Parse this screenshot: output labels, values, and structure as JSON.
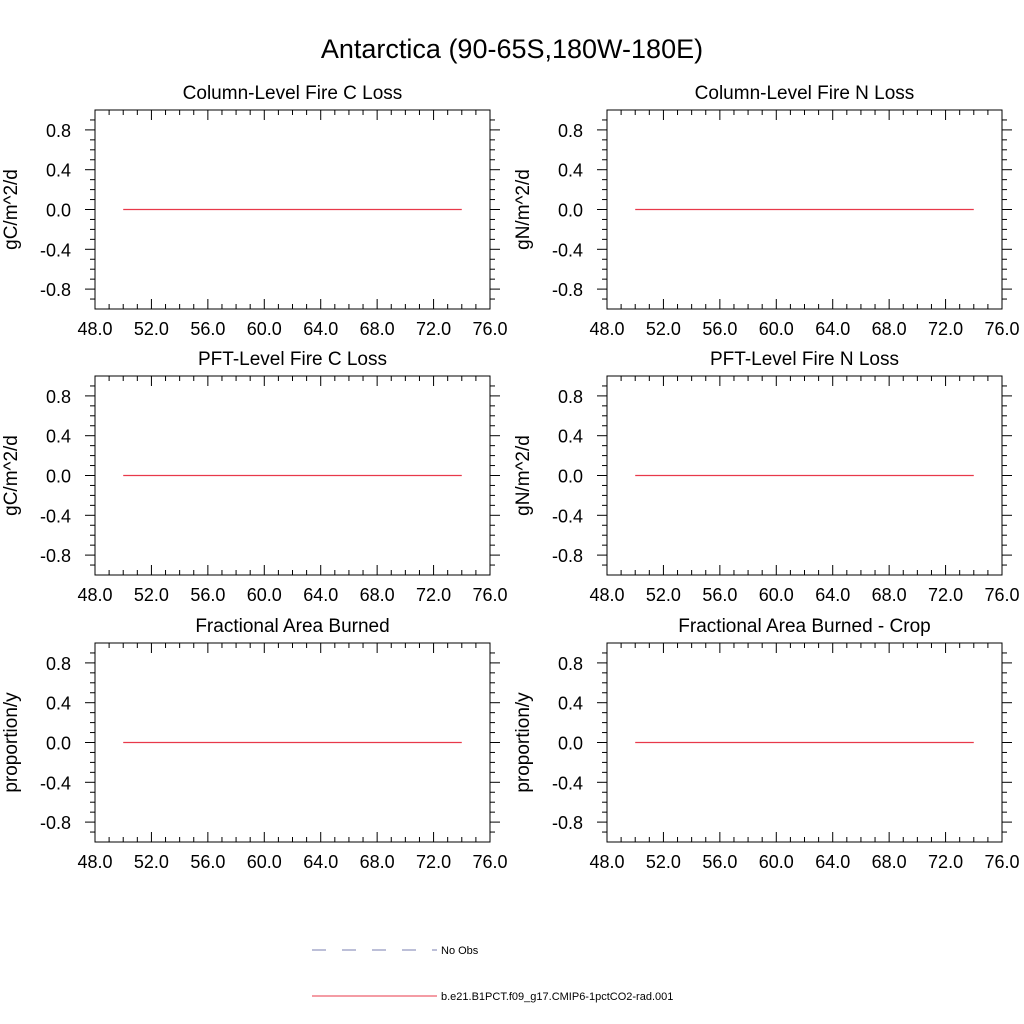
{
  "figure": {
    "title": "Antarctica (90-65S,180W-180E)"
  },
  "legend": [
    {
      "label": "No Obs",
      "color": "#7a7fb0",
      "dash": true
    },
    {
      "label": "b.e21.B1PCT.f09_g17.CMIP6-1pctCO2-rad.001",
      "color": "#e8394a",
      "dash": false
    }
  ],
  "chart_data": [
    {
      "type": "line",
      "title": "Column-Level Fire C Loss",
      "xlabel": "",
      "ylabel": "gC/m^2/d",
      "xlim": [
        48.0,
        76.0
      ],
      "ylim": [
        -1.0,
        1.0
      ],
      "xticks": [
        "48.0",
        "52.0",
        "56.0",
        "60.0",
        "64.0",
        "68.0",
        "72.0",
        "76.0"
      ],
      "yticks": [
        "0.8",
        "0.4",
        "0.0",
        "-0.4",
        "-0.8"
      ],
      "series": [
        {
          "name": "b.e21.B1PCT.f09_g17.CMIP6-1pctCO2-rad.001",
          "x": [
            50.0,
            74.0
          ],
          "y": [
            0.0,
            0.0
          ],
          "color": "#e8394a"
        }
      ]
    },
    {
      "type": "line",
      "title": "Column-Level Fire N Loss",
      "xlabel": "",
      "ylabel": "gN/m^2/d",
      "xlim": [
        48.0,
        76.0
      ],
      "ylim": [
        -1.0,
        1.0
      ],
      "xticks": [
        "48.0",
        "52.0",
        "56.0",
        "60.0",
        "64.0",
        "68.0",
        "72.0",
        "76.0"
      ],
      "yticks": [
        "0.8",
        "0.4",
        "0.0",
        "-0.4",
        "-0.8"
      ],
      "series": [
        {
          "name": "b.e21.B1PCT.f09_g17.CMIP6-1pctCO2-rad.001",
          "x": [
            50.0,
            74.0
          ],
          "y": [
            0.0,
            0.0
          ],
          "color": "#e8394a"
        }
      ]
    },
    {
      "type": "line",
      "title": "PFT-Level Fire C Loss",
      "xlabel": "",
      "ylabel": "gC/m^2/d",
      "xlim": [
        48.0,
        76.0
      ],
      "ylim": [
        -1.0,
        1.0
      ],
      "xticks": [
        "48.0",
        "52.0",
        "56.0",
        "60.0",
        "64.0",
        "68.0",
        "72.0",
        "76.0"
      ],
      "yticks": [
        "0.8",
        "0.4",
        "0.0",
        "-0.4",
        "-0.8"
      ],
      "series": [
        {
          "name": "b.e21.B1PCT.f09_g17.CMIP6-1pctCO2-rad.001",
          "x": [
            50.0,
            74.0
          ],
          "y": [
            0.0,
            0.0
          ],
          "color": "#e8394a"
        }
      ]
    },
    {
      "type": "line",
      "title": "PFT-Level Fire N Loss",
      "xlabel": "",
      "ylabel": "gN/m^2/d",
      "xlim": [
        48.0,
        76.0
      ],
      "ylim": [
        -1.0,
        1.0
      ],
      "xticks": [
        "48.0",
        "52.0",
        "56.0",
        "60.0",
        "64.0",
        "68.0",
        "72.0",
        "76.0"
      ],
      "yticks": [
        "0.8",
        "0.4",
        "0.0",
        "-0.4",
        "-0.8"
      ],
      "series": [
        {
          "name": "b.e21.B1PCT.f09_g17.CMIP6-1pctCO2-rad.001",
          "x": [
            50.0,
            74.0
          ],
          "y": [
            0.0,
            0.0
          ],
          "color": "#e8394a"
        }
      ]
    },
    {
      "type": "line",
      "title": "Fractional Area Burned",
      "xlabel": "",
      "ylabel": "proportion/y",
      "xlim": [
        48.0,
        76.0
      ],
      "ylim": [
        -1.0,
        1.0
      ],
      "xticks": [
        "48.0",
        "52.0",
        "56.0",
        "60.0",
        "64.0",
        "68.0",
        "72.0",
        "76.0"
      ],
      "yticks": [
        "0.8",
        "0.4",
        "0.0",
        "-0.4",
        "-0.8"
      ],
      "series": [
        {
          "name": "b.e21.B1PCT.f09_g17.CMIP6-1pctCO2-rad.001",
          "x": [
            50.0,
            74.0
          ],
          "y": [
            0.0,
            0.0
          ],
          "color": "#e8394a"
        }
      ]
    },
    {
      "type": "line",
      "title": "Fractional Area Burned - Crop",
      "xlabel": "",
      "ylabel": "proportion/y",
      "xlim": [
        48.0,
        76.0
      ],
      "ylim": [
        -1.0,
        1.0
      ],
      "xticks": [
        "48.0",
        "52.0",
        "56.0",
        "60.0",
        "64.0",
        "68.0",
        "72.0",
        "76.0"
      ],
      "yticks": [
        "0.8",
        "0.4",
        "0.0",
        "-0.4",
        "-0.8"
      ],
      "series": [
        {
          "name": "b.e21.B1PCT.f09_g17.CMIP6-1pctCO2-rad.001",
          "x": [
            50.0,
            74.0
          ],
          "y": [
            0.0,
            0.0
          ],
          "color": "#e8394a"
        }
      ]
    }
  ]
}
